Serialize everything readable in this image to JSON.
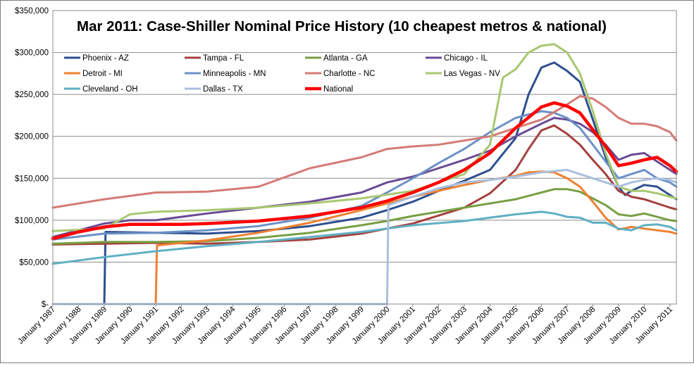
{
  "chart_data": {
    "type": "line",
    "title": "Mar 2011: Case-Shiller Nominal Price History (10 cheapest metros & national)",
    "xlabel": "",
    "ylabel": "",
    "x_range": [
      1987.0,
      2011.25
    ],
    "ylim": [
      0,
      350000
    ],
    "y_ticks": [
      0,
      50000,
      100000,
      150000,
      200000,
      250000,
      300000,
      350000
    ],
    "y_tick_labels": [
      "$-",
      "$50,000",
      "$100,000",
      "$150,000",
      "$200,000",
      "$250,000",
      "$300,000",
      "$350,000"
    ],
    "x_tick_values": [
      1987,
      1988,
      1989,
      1990,
      1991,
      1992,
      1993,
      1994,
      1995,
      1996,
      1997,
      1998,
      1999,
      2000,
      2001,
      2002,
      2003,
      2004,
      2005,
      2006,
      2007,
      2008,
      2009,
      2010,
      2011
    ],
    "x_tick_labels": [
      "January 1987",
      "January 1988",
      "January 1989",
      "January 1990",
      "January 1991",
      "January 1992",
      "January 1993",
      "January 1994",
      "January 1995",
      "January 1996",
      "January 1997",
      "January 1998",
      "January 1999",
      "January 2000",
      "January 2001",
      "January 2002",
      "January 2003",
      "January 2004",
      "January 2005",
      "January 2006",
      "January 2007",
      "January 2008",
      "January 2009",
      "January 2010",
      "January 2011"
    ],
    "grid": true,
    "legend_placement": "top-left",
    "series": [
      {
        "name": "Phoenix - AZ",
        "color": "#2e4f8f",
        "width": 3,
        "x": [
          1987,
          1989,
          1989.05,
          1991,
          1993,
          1995,
          1997,
          1999,
          2000,
          2001,
          2002,
          2003,
          2004,
          2005,
          2005.5,
          2006,
          2006.5,
          2007,
          2007.5,
          2008,
          2008.5,
          2009,
          2009.25,
          2009.5,
          2010,
          2010.5,
          2011,
          2011.25
        ],
        "y": [
          0,
          0,
          86000,
          85000,
          84000,
          87000,
          93000,
          103000,
          112000,
          122000,
          135000,
          147000,
          160000,
          198000,
          250000,
          282000,
          288000,
          278000,
          265000,
          220000,
          175000,
          140000,
          130000,
          135000,
          142000,
          140000,
          130000,
          125000
        ]
      },
      {
        "name": "Tampa - FL",
        "color": "#a4403d",
        "width": 3,
        "x": [
          1987,
          1989,
          1991,
          1993,
          1995,
          1997,
          1999,
          2001,
          2003,
          2004,
          2005,
          2005.5,
          2006,
          2006.5,
          2007,
          2007.5,
          2008,
          2008.5,
          2009,
          2009.5,
          2010,
          2010.5,
          2011,
          2011.25
        ],
        "y": [
          71000,
          72000,
          73000,
          72000,
          74000,
          77000,
          84000,
          96000,
          115000,
          132000,
          160000,
          185000,
          207000,
          213000,
          203000,
          190000,
          172000,
          155000,
          135000,
          128000,
          125000,
          120000,
          115000,
          113000
        ]
      },
      {
        "name": "Atlanta - GA",
        "color": "#77a043",
        "width": 3,
        "x": [
          1987,
          1989,
          1991,
          1993,
          1995,
          1997,
          1999,
          2000,
          2001,
          2002,
          2003,
          2004,
          2005,
          2006,
          2006.5,
          2007,
          2007.5,
          2008,
          2008.5,
          2009,
          2009.5,
          2010,
          2010.5,
          2011,
          2011.25
        ],
        "y": [
          72000,
          74000,
          74000,
          75000,
          79000,
          85000,
          94000,
          99000,
          105000,
          110000,
          115000,
          120000,
          125000,
          133000,
          137000,
          137000,
          134000,
          126000,
          118000,
          107000,
          105000,
          108000,
          104000,
          100000,
          99000
        ]
      },
      {
        "name": "Chicago - IL",
        "color": "#6a4a95",
        "width": 3,
        "x": [
          1987,
          1988,
          1989,
          1990,
          1991,
          1993,
          1995,
          1997,
          1999,
          2000,
          2001,
          2002,
          2003,
          2004,
          2005,
          2006,
          2006.5,
          2007,
          2007.5,
          2008,
          2008.5,
          2009,
          2009.5,
          2010,
          2010.5,
          2011,
          2011.25
        ],
        "y": [
          80000,
          88000,
          96000,
          100000,
          100000,
          108000,
          115000,
          122000,
          133000,
          145000,
          152000,
          162000,
          172000,
          183000,
          200000,
          215000,
          222000,
          220000,
          215000,
          205000,
          190000,
          172000,
          178000,
          180000,
          170000,
          160000,
          155000
        ]
      },
      {
        "name": "Detroit - MI",
        "color": "#ee8131",
        "width": 3,
        "x": [
          1987,
          1991,
          1991.05,
          1993,
          1995,
          1997,
          1999,
          2001,
          2003,
          2004,
          2005,
          2005.5,
          2006,
          2006.5,
          2007,
          2007.5,
          2008,
          2008.5,
          2009,
          2009.5,
          2010,
          2010.5,
          2011,
          2011.25
        ],
        "y": [
          0,
          0,
          70000,
          76000,
          85000,
          97000,
          112000,
          128000,
          142000,
          148000,
          153000,
          157000,
          158000,
          157000,
          150000,
          140000,
          122000,
          103000,
          89000,
          92000,
          90000,
          88000,
          86000,
          84000
        ]
      },
      {
        "name": "Minneapolis - MN",
        "color": "#6b91c6",
        "width": 3,
        "x": [
          1987,
          1989,
          1991,
          1993,
          1995,
          1997,
          1999,
          2000,
          2001,
          2002,
          2003,
          2004,
          2005,
          2006,
          2006.5,
          2007,
          2007.5,
          2008,
          2008.5,
          2009,
          2009.5,
          2010,
          2010.5,
          2011,
          2011.25
        ],
        "y": [
          77000,
          84000,
          85000,
          88000,
          93000,
          103000,
          117000,
          133000,
          150000,
          168000,
          185000,
          205000,
          222000,
          230000,
          228000,
          222000,
          210000,
          190000,
          170000,
          150000,
          155000,
          160000,
          150000,
          145000,
          140000
        ]
      },
      {
        "name": "Charlotte - NC",
        "color": "#d57a76",
        "width": 3,
        "x": [
          1987,
          1989,
          1991,
          1993,
          1995,
          1997,
          1999,
          2000,
          2001,
          2002,
          2003,
          2004,
          2005,
          2006,
          2007,
          2007.5,
          2008,
          2008.5,
          2009,
          2009.5,
          2010,
          2010.5,
          2011,
          2011.25
        ],
        "y": [
          115000,
          125000,
          133000,
          134000,
          140000,
          162000,
          175000,
          185000,
          188000,
          190000,
          195000,
          200000,
          210000,
          220000,
          238000,
          248000,
          245000,
          235000,
          222000,
          215000,
          215000,
          212000,
          205000,
          195000
        ]
      },
      {
        "name": "Las Vegas - NV",
        "color": "#a8c770",
        "width": 3,
        "x": [
          1987,
          1989,
          1990,
          1991,
          1993,
          1995,
          1997,
          1999,
          2001,
          2003,
          2004,
          2004.5,
          2005,
          2005.5,
          2006,
          2006.5,
          2007,
          2007.5,
          2008,
          2008.5,
          2009,
          2009.5,
          2010,
          2010.5,
          2011,
          2011.25
        ],
        "y": [
          87000,
          90000,
          107000,
          110000,
          112000,
          115000,
          120000,
          126000,
          135000,
          155000,
          190000,
          270000,
          280000,
          300000,
          308000,
          310000,
          300000,
          275000,
          230000,
          180000,
          140000,
          135000,
          135000,
          132000,
          128000,
          126000
        ]
      },
      {
        "name": "Cleveland - OH",
        "color": "#5fb0c3",
        "width": 3,
        "x": [
          1987,
          1989,
          1991,
          1993,
          1995,
          1997,
          1999,
          2001,
          2003,
          2005,
          2006,
          2006.5,
          2007,
          2007.5,
          2008,
          2008.5,
          2009,
          2009.5,
          2010,
          2010.5,
          2011,
          2011.25
        ],
        "y": [
          48000,
          56000,
          63000,
          69000,
          74000,
          80000,
          86000,
          94000,
          99000,
          107000,
          110000,
          108000,
          104000,
          103000,
          97000,
          97000,
          90000,
          88000,
          94000,
          95000,
          92000,
          88000
        ]
      },
      {
        "name": "Dallas - TX",
        "color": "#aabfde",
        "width": 3,
        "x": [
          1987,
          2000,
          2000.05,
          2001,
          2002,
          2003,
          2004,
          2005,
          2006,
          2007,
          2008,
          2008.5,
          2009,
          2009.5,
          2010,
          2010.5,
          2011,
          2011.25
        ],
        "y": [
          0,
          0,
          118000,
          128000,
          138000,
          145000,
          148000,
          152000,
          157000,
          160000,
          150000,
          145000,
          140000,
          145000,
          148000,
          150000,
          148000,
          145000
        ]
      },
      {
        "name": "National",
        "color": "#ff0000",
        "width": 4.5,
        "x": [
          1987,
          1988,
          1989,
          1990,
          1991,
          1992,
          1993,
          1995,
          1997,
          1999,
          2000,
          2001,
          2002,
          2003,
          2004,
          2005,
          2006,
          2006.5,
          2007,
          2007.5,
          2008,
          2008.5,
          2009,
          2009.5,
          2010,
          2010.5,
          2011,
          2011.25
        ],
        "y": [
          78000,
          86000,
          92000,
          95000,
          95000,
          95000,
          96000,
          99000,
          105000,
          115000,
          123000,
          133000,
          145000,
          160000,
          180000,
          210000,
          235000,
          240000,
          236000,
          228000,
          208000,
          188000,
          165000,
          168000,
          172000,
          175000,
          165000,
          158000
        ]
      }
    ]
  }
}
